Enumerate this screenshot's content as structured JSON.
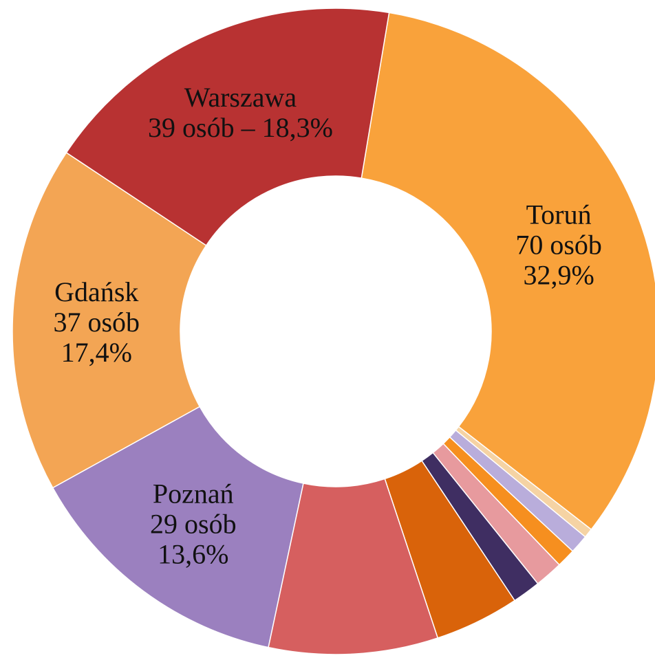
{
  "chart_data": {
    "type": "donut",
    "categories": [
      "Toruń",
      null,
      null,
      null,
      null,
      null,
      null,
      null,
      "Poznań",
      "Gdańsk",
      "Warszawa"
    ],
    "values": [
      70,
      1,
      2,
      2,
      3,
      3,
      9,
      18,
      29,
      37,
      39
    ],
    "value_labels": [
      [
        "70 osób",
        "32,9%"
      ],
      null,
      null,
      null,
      null,
      null,
      null,
      null,
      [
        "29 osób",
        "13,6%"
      ],
      [
        "37 osób",
        "17,4%"
      ],
      [
        "39 osób – 18,3%"
      ]
    ],
    "colors": [
      "#f9a23b",
      "#f5d3a4",
      "#b9addb",
      "#f68f1f",
      "#e79a9e",
      "#3f2e62",
      "#d9630a",
      "#d65f5f",
      "#9b80bf",
      "#f3a554",
      "#b83232"
    ]
  }
}
